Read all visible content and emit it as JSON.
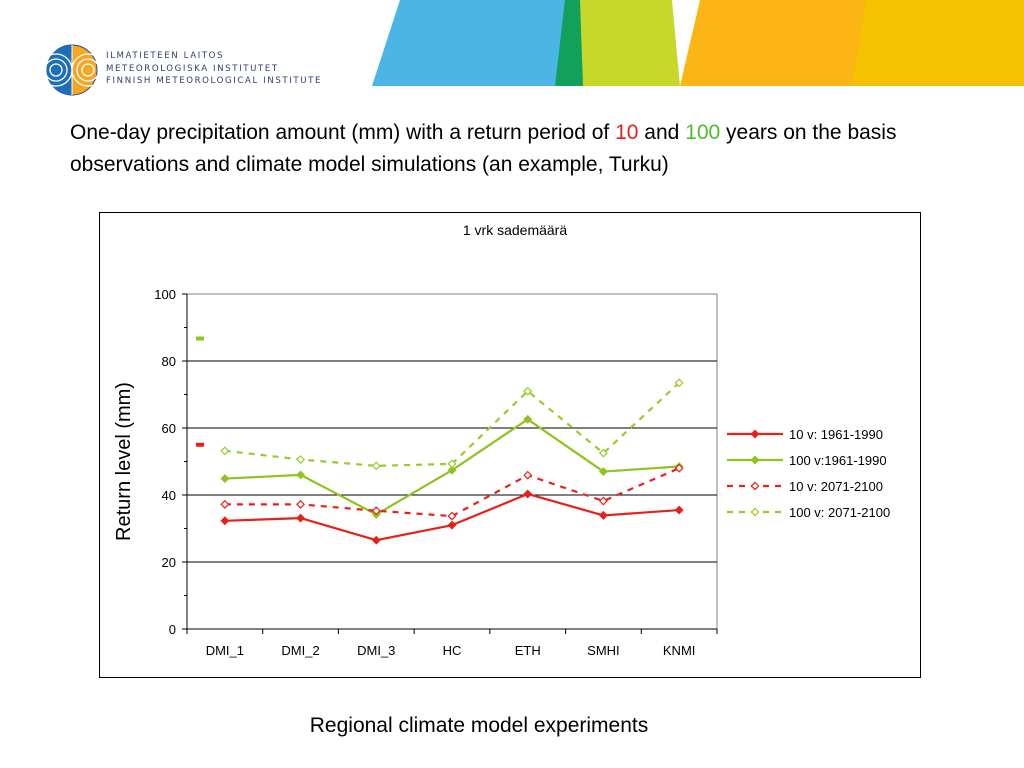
{
  "header": {
    "org_lines": [
      "ILMATIETEEN LAITOS",
      "METEOROLOGISKA INSTITUTET",
      "FINNISH METEOROLOGICAL INSTITUTE"
    ],
    "logo_icon": "fmi-globe-logo-icon",
    "stripe_colors": [
      "#4bb5e6",
      "#f4c200",
      "#c6d92a",
      "#12a05a",
      "#fbb515"
    ]
  },
  "slide": {
    "title_part1": "One-day precipitation amount (mm) with a return period of ",
    "title_num1": "10",
    "title_part2": " and ",
    "title_num2": "100",
    "title_part3": " years on the basis observations and climate model simulations (an example, Turku)",
    "caption": "Regional climate model experiments"
  },
  "colors": {
    "red": "#e8201a",
    "green": "#8fc31f",
    "lightgreen": "#9acb2c"
  },
  "chart_data": {
    "type": "line",
    "title": "1 vrk sademäärä",
    "ylabel": "Return level (mm)",
    "xlabel": "",
    "categories": [
      "DMI_1",
      "DMI_2",
      "DMI_3",
      "HC",
      "ETH",
      "SMHI",
      "KNMI"
    ],
    "ylim": [
      0,
      100
    ],
    "yticks": [
      0,
      20,
      40,
      60,
      80,
      100
    ],
    "grid": true,
    "legend_position": "right",
    "series": [
      {
        "name": "10 v: 1961-1990",
        "values": [
          32.3,
          33.1,
          26.5,
          31.0,
          40.3,
          33.9,
          35.5
        ],
        "color": "#e8201a",
        "dash": false,
        "marker": "filled"
      },
      {
        "name": "100 v:1961-1990",
        "values": [
          44.9,
          46.0,
          34.2,
          47.4,
          62.6,
          47.0,
          48.5
        ],
        "color": "#8fc31f",
        "dash": false,
        "marker": "filled"
      },
      {
        "name": "10 v: 2071-2100",
        "values": [
          37.2,
          37.2,
          35.3,
          33.7,
          45.9,
          38.2,
          48.0
        ],
        "color": "#e8201a",
        "dash": true,
        "marker": "open"
      },
      {
        "name": "100 v: 2071-2100",
        "values": [
          53.2,
          50.6,
          48.7,
          49.3,
          71.0,
          52.5,
          73.5
        ],
        "color": "#9acb2c",
        "dash": true,
        "marker": "open"
      }
    ],
    "observed_marks": [
      {
        "value": 86.7,
        "color": "#8fc31f"
      },
      {
        "value": 55.0,
        "color": "#e8201a"
      }
    ]
  }
}
